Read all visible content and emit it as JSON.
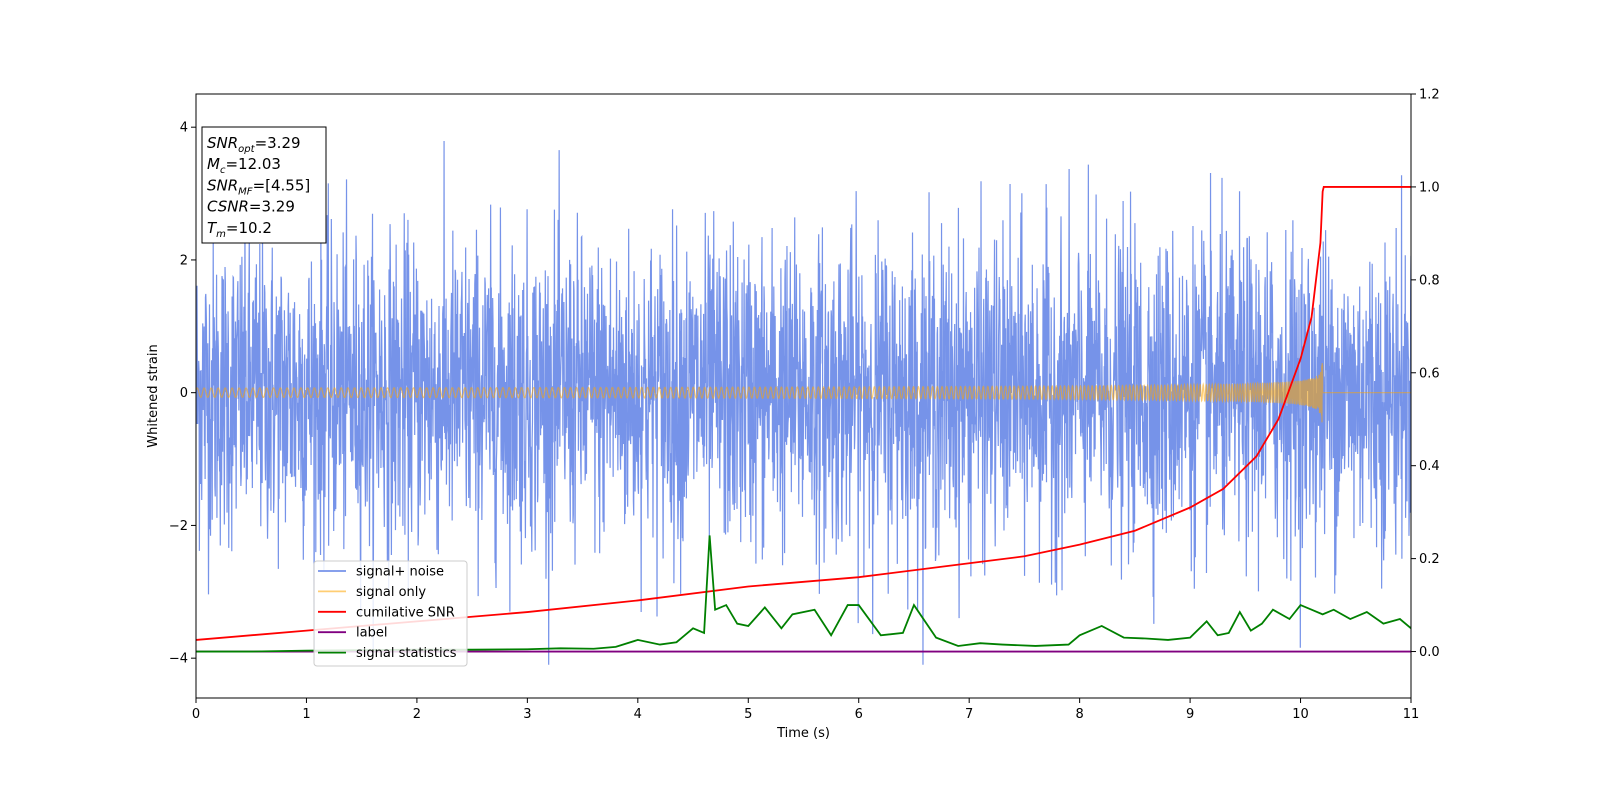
{
  "chart_data": {
    "type": "line",
    "title": "",
    "xlabel": "Time (s)",
    "ylabel": "Whitened strain",
    "xlim": [
      0,
      11
    ],
    "ylim": [
      -4.6,
      4.5
    ],
    "y2lim": [
      -0.1,
      1.2
    ],
    "grid": false,
    "legend_position": "lower-left",
    "xticks": [
      "0",
      "1",
      "2",
      "3",
      "4",
      "5",
      "6",
      "7",
      "8",
      "9",
      "10",
      "11"
    ],
    "yticks": [
      "−4",
      "−2",
      "0",
      "2",
      "4"
    ],
    "y2ticks": [
      "0.0",
      "0.2",
      "0.4",
      "0.6",
      "0.8",
      "1.0",
      "1.2"
    ],
    "annotation": {
      "lines": [
        {
          "base": "SNR",
          "sub": "opt",
          "rest": "=3.29"
        },
        {
          "base": "M",
          "sub": "c",
          "rest": "=12.03"
        },
        {
          "base": "SNR",
          "sub": "MF",
          "rest": "=[4.55]"
        },
        {
          "base": "CSNR",
          "sub": "",
          "rest": "=3.29"
        },
        {
          "base": "T",
          "sub": "m",
          "rest": "=10.2"
        }
      ]
    },
    "series": [
      {
        "name": "signal+ noise",
        "axis": "left",
        "color": "#4169e1",
        "kind": "noise",
        "x_range": [
          0,
          11
        ],
        "typical_amplitude": 2.2,
        "peak_amplitude": 4.1
      },
      {
        "name": "signal only",
        "axis": "left",
        "color": "#ffa500",
        "kind": "chirp",
        "x_range": [
          0,
          10.2
        ],
        "end_amplitude": 0.5,
        "after_merger": 0
      },
      {
        "name": "cumilative SNR",
        "axis": "right",
        "color": "#ff0000",
        "x": [
          0,
          1,
          2,
          3,
          4,
          5,
          6,
          7,
          7.5,
          8,
          8.5,
          9,
          9.3,
          9.6,
          9.8,
          10,
          10.1,
          10.18,
          10.2,
          10.21,
          11
        ],
        "y": [
          0.025,
          0.045,
          0.065,
          0.085,
          0.11,
          0.14,
          0.16,
          0.19,
          0.205,
          0.23,
          0.26,
          0.31,
          0.35,
          0.42,
          0.5,
          0.63,
          0.72,
          0.88,
          0.99,
          1.0,
          1.0
        ]
      },
      {
        "name": "label",
        "axis": "right",
        "color": "#800080",
        "x": [
          0,
          11
        ],
        "y": [
          0.0,
          0.0
        ]
      },
      {
        "name": "signal statistics",
        "axis": "right",
        "color": "#008000",
        "x": [
          0,
          0.5,
          1,
          1.5,
          2,
          2.5,
          3,
          3.3,
          3.6,
          3.8,
          4.0,
          4.2,
          4.35,
          4.5,
          4.6,
          4.65,
          4.7,
          4.8,
          4.9,
          5.0,
          5.15,
          5.3,
          5.4,
          5.6,
          5.75,
          5.9,
          6.0,
          6.2,
          6.4,
          6.5,
          6.7,
          6.9,
          7.1,
          7.3,
          7.6,
          7.9,
          8.0,
          8.2,
          8.4,
          8.6,
          8.8,
          9.0,
          9.15,
          9.25,
          9.35,
          9.45,
          9.55,
          9.65,
          9.75,
          9.9,
          10.0,
          10.1,
          10.2,
          10.3,
          10.45,
          10.6,
          10.75,
          10.9,
          11
        ],
        "y": [
          0.0,
          0.0,
          0.002,
          0.003,
          0.004,
          0.004,
          0.005,
          0.007,
          0.006,
          0.01,
          0.025,
          0.015,
          0.02,
          0.05,
          0.04,
          0.25,
          0.09,
          0.1,
          0.06,
          0.055,
          0.095,
          0.05,
          0.08,
          0.09,
          0.035,
          0.1,
          0.1,
          0.035,
          0.04,
          0.1,
          0.03,
          0.012,
          0.018,
          0.015,
          0.012,
          0.015,
          0.035,
          0.055,
          0.03,
          0.028,
          0.025,
          0.03,
          0.065,
          0.035,
          0.04,
          0.085,
          0.045,
          0.06,
          0.09,
          0.07,
          0.1,
          0.09,
          0.08,
          0.09,
          0.07,
          0.085,
          0.06,
          0.07,
          0.05
        ]
      }
    ]
  }
}
